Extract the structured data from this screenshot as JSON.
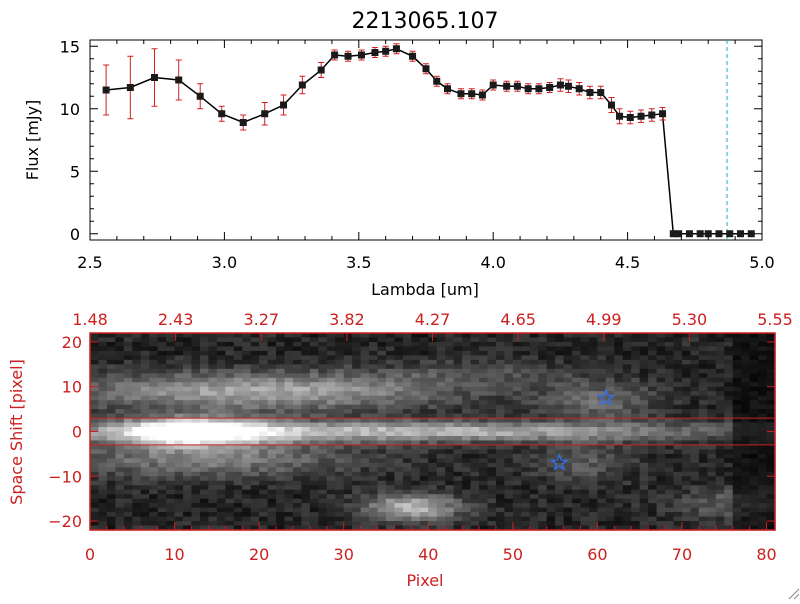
{
  "chart_data": [
    {
      "type": "line",
      "title": "2213065.107",
      "xlabel": "Lambda [um]",
      "ylabel": "Flux [mJy]",
      "xlim": [
        2.5,
        5.0
      ],
      "ylim": [
        -0.5,
        15.5
      ],
      "x_ticks": [
        "2.5",
        "3.0",
        "3.5",
        "4.0",
        "4.5",
        "5.0"
      ],
      "y_ticks": [
        "0",
        "5",
        "10",
        "15"
      ],
      "x_tick_values": [
        2.5,
        3.0,
        3.5,
        4.0,
        4.5,
        5.0
      ],
      "y_tick_values": [
        0,
        5,
        10,
        15
      ],
      "vline_x": 4.87,
      "series": [
        {
          "x": [
            2.56,
            2.65,
            2.74,
            2.83,
            2.91,
            2.99,
            3.07,
            3.15,
            3.22,
            3.29,
            3.36,
            3.41,
            3.46,
            3.51,
            3.56,
            3.6,
            3.64,
            3.7,
            3.75,
            3.79,
            3.83,
            3.88,
            3.92,
            3.96,
            4.0,
            4.05,
            4.09,
            4.13,
            4.17,
            4.21,
            4.25,
            4.28,
            4.32,
            4.36,
            4.4,
            4.44,
            4.47,
            4.51,
            4.55,
            4.59,
            4.63,
            4.67,
            4.69,
            4.73,
            4.77,
            4.8,
            4.84,
            4.88,
            4.92,
            4.96
          ],
          "y": [
            11.5,
            11.7,
            12.5,
            12.3,
            11.0,
            9.6,
            8.9,
            9.6,
            10.3,
            11.9,
            13.1,
            14.3,
            14.2,
            14.3,
            14.5,
            14.6,
            14.8,
            14.2,
            13.2,
            12.2,
            11.6,
            11.2,
            11.2,
            11.1,
            11.9,
            11.8,
            11.8,
            11.6,
            11.6,
            11.7,
            11.9,
            11.8,
            11.6,
            11.3,
            11.3,
            10.3,
            9.4,
            9.3,
            9.4,
            9.5,
            9.6,
            0.0,
            0.0,
            0.0,
            0.0,
            0.0,
            0.0,
            0.0,
            0.0,
            0.0
          ],
          "yerr": [
            2.0,
            2.5,
            2.3,
            1.6,
            1.0,
            0.6,
            0.6,
            0.9,
            0.8,
            0.7,
            0.6,
            0.4,
            0.4,
            0.4,
            0.4,
            0.4,
            0.4,
            0.4,
            0.4,
            0.4,
            0.4,
            0.4,
            0.4,
            0.4,
            0.4,
            0.4,
            0.4,
            0.4,
            0.4,
            0.4,
            0.5,
            0.5,
            0.5,
            0.5,
            0.5,
            0.6,
            0.6,
            0.5,
            0.5,
            0.5,
            0.5,
            0.2,
            0.2,
            0.2,
            0.2,
            0.2,
            0.2,
            0.2,
            0.2,
            0.2
          ]
        }
      ]
    },
    {
      "type": "heatmap",
      "xlabel": "Pixel",
      "ylabel": "Space Shift [pixel]",
      "xlim": [
        0,
        81
      ],
      "ylim": [
        -22,
        22
      ],
      "x_ticks": [
        "0",
        "10",
        "20",
        "30",
        "40",
        "50",
        "60",
        "70",
        "80"
      ],
      "x_tick_values": [
        0,
        10,
        20,
        30,
        40,
        50,
        60,
        70,
        80
      ],
      "y_ticks": [
        "20",
        "10",
        "0",
        "−10",
        "−20"
      ],
      "y_tick_values": [
        20,
        10,
        0,
        -10,
        -20
      ],
      "top_ticks": [
        "1.48",
        "2.43",
        "3.27",
        "3.82",
        "4.27",
        "4.65",
        "4.99",
        "5.30",
        "5.55"
      ],
      "aperture_lines": [
        3,
        -3
      ],
      "stars": [
        {
          "x": 61,
          "y": 7.5
        },
        {
          "x": 55.5,
          "y": -7
        }
      ]
    }
  ],
  "colors": {
    "axis": "#000000",
    "error": "#d02020",
    "marker": "#1a1a1a",
    "accent_red": "#cc2020",
    "vline": "#20b0c0",
    "star": "#3070ff"
  }
}
